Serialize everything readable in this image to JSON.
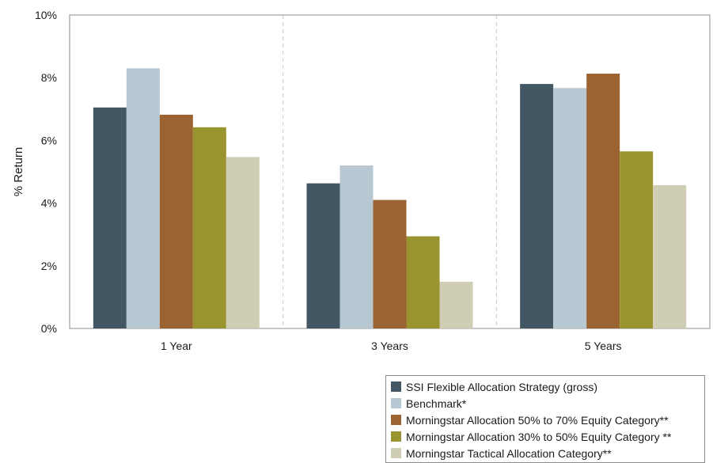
{
  "chart_data": {
    "type": "bar",
    "title": "",
    "xlabel": "",
    "ylabel": "% Return",
    "ylim": [
      0,
      10
    ],
    "yticks": [
      "0%",
      "2%",
      "4%",
      "6%",
      "8%",
      "10%"
    ],
    "categories": [
      "1 Year",
      "3 Years",
      "5 Years"
    ],
    "grid": "vertical dashed separators between categories",
    "legend_position": "bottom-right",
    "series": [
      {
        "name": "SSI Flexible Allocation Strategy (gross)",
        "color": "#435663",
        "values": [
          7.05,
          4.63,
          7.8
        ]
      },
      {
        "name": "Benchmark*",
        "color": "#b8c8d3",
        "values": [
          8.3,
          5.2,
          7.67
        ]
      },
      {
        "name": "Morningstar Allocation 50% to 70% Equity Category**",
        "color": "#9b6232",
        "values": [
          6.82,
          4.1,
          8.13
        ]
      },
      {
        "name": "Morningstar Allocation 30% to 50% Equity Category **",
        "color": "#99942f",
        "values": [
          6.42,
          2.94,
          5.65
        ]
      },
      {
        "name": "Morningstar Tactical Allocation Category**",
        "color": "#cfcdb4",
        "values": [
          5.47,
          1.49,
          4.57
        ]
      }
    ]
  }
}
